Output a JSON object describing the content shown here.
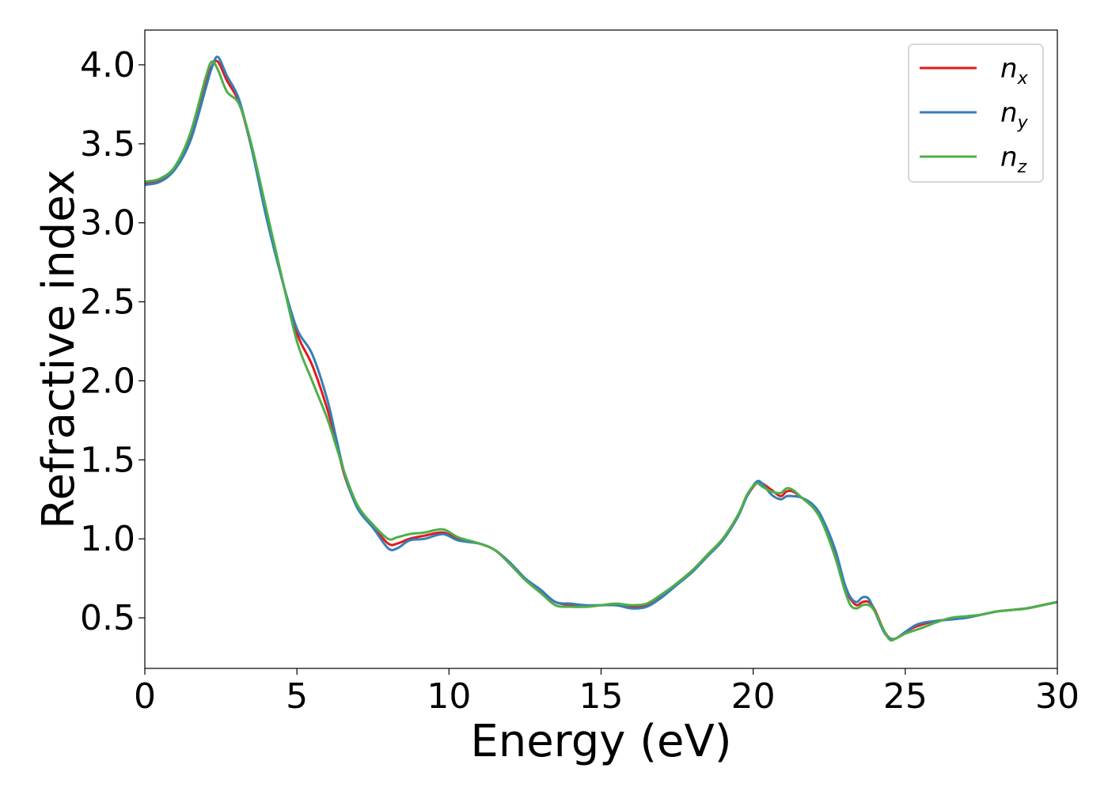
{
  "chart_data": {
    "type": "line",
    "title": "",
    "xlabel": "Energy (eV)",
    "ylabel": "Refractive index",
    "xlim": [
      0,
      30
    ],
    "ylim": [
      0.18,
      4.22
    ],
    "x_ticks": [
      "0",
      "5",
      "10",
      "15",
      "20",
      "25",
      "30"
    ],
    "y_ticks": [
      "0.5",
      "1.0",
      "1.5",
      "2.0",
      "2.5",
      "3.0",
      "3.5",
      "4.0"
    ],
    "grid": false,
    "legend_position": "top-right",
    "series": [
      {
        "name": "n_x",
        "label_base": "n",
        "label_sub": "x",
        "color": "#e41a1c",
        "x": [
          0,
          0.5,
          1.0,
          1.5,
          2.0,
          2.2,
          2.4,
          2.7,
          3.1,
          3.5,
          4.0,
          4.5,
          5.0,
          5.5,
          6.0,
          6.3,
          6.6,
          7.0,
          7.5,
          8.0,
          8.3,
          8.7,
          9.2,
          9.8,
          10.3,
          11.0,
          11.5,
          12.0,
          12.5,
          13.0,
          13.5,
          14.0,
          14.5,
          15.0,
          15.5,
          16.0,
          16.5,
          17.0,
          17.5,
          18.0,
          18.5,
          19.0,
          19.5,
          19.8,
          20.1,
          20.3,
          20.6,
          20.9,
          21.1,
          21.3,
          21.6,
          22.0,
          22.3,
          22.7,
          23.0,
          23.2,
          23.4,
          23.6,
          23.8,
          24.0,
          24.3,
          24.5,
          24.7,
          25.0,
          25.3,
          25.6,
          26.0,
          26.5,
          27.0,
          27.5,
          28.0,
          28.5,
          29.0,
          29.5,
          30.0
        ],
        "values": [
          3.25,
          3.27,
          3.35,
          3.55,
          3.88,
          3.99,
          4.02,
          3.9,
          3.76,
          3.48,
          3.05,
          2.65,
          2.3,
          2.1,
          1.82,
          1.6,
          1.38,
          1.2,
          1.08,
          0.97,
          0.97,
          1.0,
          1.02,
          1.04,
          1.0,
          0.97,
          0.93,
          0.85,
          0.75,
          0.67,
          0.6,
          0.58,
          0.57,
          0.58,
          0.58,
          0.57,
          0.58,
          0.64,
          0.72,
          0.8,
          0.9,
          1.0,
          1.15,
          1.27,
          1.35,
          1.35,
          1.31,
          1.27,
          1.3,
          1.3,
          1.26,
          1.2,
          1.1,
          0.9,
          0.7,
          0.62,
          0.58,
          0.6,
          0.6,
          0.55,
          0.42,
          0.37,
          0.37,
          0.41,
          0.44,
          0.46,
          0.48,
          0.49,
          0.5,
          0.52,
          0.54,
          0.55,
          0.56,
          0.58,
          0.6
        ]
      },
      {
        "name": "n_y",
        "label_base": "n",
        "label_sub": "y",
        "color": "#377eb8",
        "x": [
          0,
          0.5,
          1.0,
          1.5,
          2.0,
          2.2,
          2.4,
          2.7,
          3.1,
          3.5,
          4.0,
          4.5,
          5.0,
          5.5,
          6.0,
          6.3,
          6.6,
          7.0,
          7.5,
          8.0,
          8.3,
          8.7,
          9.2,
          9.8,
          10.3,
          11.0,
          11.5,
          12.0,
          12.5,
          13.0,
          13.5,
          14.0,
          14.5,
          15.0,
          15.5,
          16.0,
          16.5,
          17.0,
          17.5,
          18.0,
          18.5,
          19.0,
          19.5,
          19.8,
          20.1,
          20.3,
          20.6,
          20.9,
          21.1,
          21.3,
          21.6,
          22.0,
          22.3,
          22.7,
          23.0,
          23.2,
          23.4,
          23.6,
          23.8,
          24.0,
          24.3,
          24.5,
          24.7,
          25.0,
          25.3,
          25.6,
          26.0,
          26.5,
          27.0,
          27.5,
          28.0,
          28.5,
          29.0,
          29.5,
          30.0
        ],
        "values": [
          3.24,
          3.26,
          3.34,
          3.52,
          3.85,
          3.98,
          4.05,
          3.93,
          3.78,
          3.48,
          3.03,
          2.65,
          2.33,
          2.17,
          1.88,
          1.63,
          1.39,
          1.19,
          1.07,
          0.94,
          0.94,
          0.99,
          1.0,
          1.03,
          0.99,
          0.97,
          0.93,
          0.85,
          0.75,
          0.68,
          0.6,
          0.59,
          0.58,
          0.58,
          0.58,
          0.56,
          0.57,
          0.63,
          0.71,
          0.79,
          0.89,
          0.99,
          1.14,
          1.27,
          1.36,
          1.35,
          1.28,
          1.25,
          1.27,
          1.27,
          1.26,
          1.21,
          1.12,
          0.93,
          0.72,
          0.63,
          0.6,
          0.63,
          0.62,
          0.54,
          0.41,
          0.37,
          0.37,
          0.41,
          0.45,
          0.47,
          0.48,
          0.49,
          0.5,
          0.52,
          0.54,
          0.55,
          0.56,
          0.58,
          0.6
        ]
      },
      {
        "name": "n_z",
        "label_base": "n",
        "label_sub": "z",
        "color": "#4daf4a",
        "x": [
          0,
          0.5,
          1.0,
          1.5,
          2.0,
          2.2,
          2.4,
          2.7,
          3.1,
          3.5,
          4.0,
          4.5,
          5.0,
          5.5,
          6.0,
          6.3,
          6.6,
          7.0,
          7.5,
          8.0,
          8.3,
          8.7,
          9.2,
          9.8,
          10.3,
          11.0,
          11.5,
          12.0,
          12.5,
          13.0,
          13.5,
          14.0,
          14.5,
          15.0,
          15.5,
          16.0,
          16.5,
          17.0,
          17.5,
          18.0,
          18.5,
          19.0,
          19.5,
          19.8,
          20.1,
          20.3,
          20.6,
          20.9,
          21.1,
          21.3,
          21.6,
          22.0,
          22.3,
          22.7,
          23.0,
          23.2,
          23.4,
          23.6,
          23.8,
          24.0,
          24.3,
          24.5,
          24.7,
          25.0,
          25.3,
          25.6,
          26.0,
          26.5,
          27.0,
          27.5,
          28.0,
          28.5,
          29.0,
          29.5,
          30.0
        ],
        "values": [
          3.26,
          3.28,
          3.36,
          3.57,
          3.92,
          4.02,
          3.97,
          3.83,
          3.75,
          3.5,
          3.08,
          2.66,
          2.25,
          2.0,
          1.76,
          1.58,
          1.4,
          1.21,
          1.09,
          1.0,
          1.01,
          1.03,
          1.04,
          1.06,
          1.01,
          0.97,
          0.93,
          0.84,
          0.74,
          0.66,
          0.58,
          0.57,
          0.57,
          0.58,
          0.59,
          0.58,
          0.59,
          0.65,
          0.72,
          0.8,
          0.9,
          1.0,
          1.15,
          1.28,
          1.35,
          1.33,
          1.3,
          1.29,
          1.32,
          1.31,
          1.26,
          1.19,
          1.09,
          0.88,
          0.68,
          0.58,
          0.56,
          0.58,
          0.58,
          0.54,
          0.42,
          0.36,
          0.37,
          0.4,
          0.42,
          0.44,
          0.47,
          0.5,
          0.51,
          0.52,
          0.54,
          0.55,
          0.56,
          0.58,
          0.6
        ]
      }
    ]
  }
}
